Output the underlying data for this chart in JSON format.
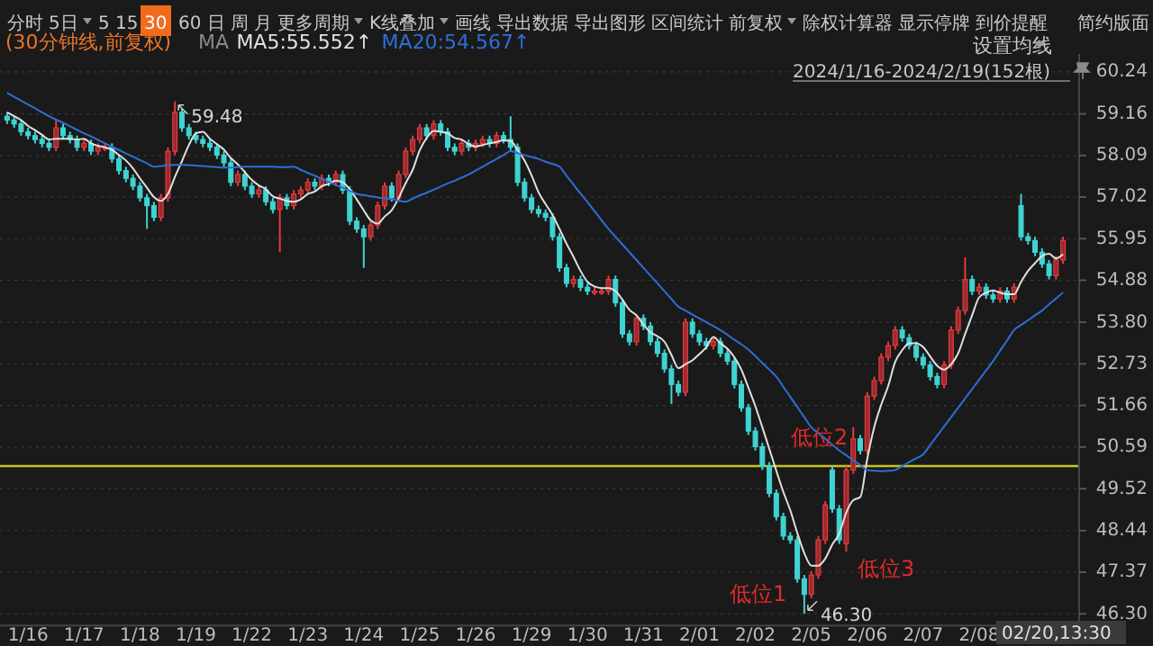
{
  "chart_data": {
    "type": "candlestick",
    "title": "(30分钟线,前复权)",
    "legend_title": "MA",
    "legend": "top left",
    "grid": "y",
    "categories": [
      null,
      null,
      null,
      "1/16",
      null,
      null,
      null,
      null,
      null,
      null,
      null,
      "1/17",
      null,
      null,
      null,
      null,
      null,
      null,
      null,
      "1/18",
      null,
      null,
      null,
      null,
      null,
      null,
      null,
      "1/19",
      null,
      null,
      null,
      null,
      null,
      null,
      null,
      "1/22",
      null,
      null,
      null,
      null,
      null,
      null,
      null,
      "1/23",
      null,
      null,
      null,
      null,
      null,
      null,
      null,
      "1/24",
      null,
      null,
      null,
      null,
      null,
      null,
      null,
      "1/25",
      null,
      null,
      null,
      null,
      null,
      null,
      null,
      "1/26",
      null,
      null,
      null,
      null,
      null,
      null,
      null,
      "1/29",
      null,
      null,
      null,
      null,
      null,
      null,
      null,
      "1/30",
      null,
      null,
      null,
      null,
      null,
      null,
      null,
      "1/31",
      null,
      null,
      null,
      null,
      null,
      null,
      null,
      "2/01",
      null,
      null,
      null,
      null,
      null,
      null,
      null,
      "2/02",
      null,
      null,
      null,
      null,
      null,
      null,
      null,
      "2/05",
      null,
      null,
      null,
      null,
      null,
      null,
      null,
      "2/06",
      null,
      null,
      null,
      null,
      null,
      null,
      null,
      "2/07",
      null,
      null,
      null,
      null,
      null,
      null,
      null,
      "2/08",
      null,
      null,
      null,
      null,
      null,
      null,
      null,
      null,
      null,
      null,
      null,
      null
    ],
    "ohlc": [
      [
        59.1,
        59.2,
        58.9,
        59.0
      ],
      [
        59.0,
        59.1,
        58.8,
        58.9
      ],
      [
        58.9,
        59.0,
        58.6,
        58.7
      ],
      [
        58.7,
        58.8,
        58.5,
        58.6
      ],
      [
        58.6,
        58.7,
        58.4,
        58.5
      ],
      [
        58.5,
        58.6,
        58.3,
        58.4
      ],
      [
        58.4,
        58.5,
        58.2,
        58.3
      ],
      [
        58.3,
        59.0,
        58.2,
        58.8
      ],
      [
        58.8,
        58.9,
        58.5,
        58.6
      ],
      [
        58.6,
        58.7,
        58.4,
        58.5
      ],
      [
        58.5,
        58.6,
        58.2,
        58.3
      ],
      [
        58.3,
        58.5,
        58.2,
        58.4
      ],
      [
        58.4,
        58.5,
        58.1,
        58.2
      ],
      [
        58.2,
        58.4,
        58.1,
        58.3
      ],
      [
        58.3,
        58.4,
        58.2,
        58.3
      ],
      [
        58.3,
        58.4,
        57.9,
        58.0
      ],
      [
        58.0,
        58.1,
        57.6,
        57.7
      ],
      [
        57.7,
        57.8,
        57.4,
        57.5
      ],
      [
        57.5,
        57.6,
        57.2,
        57.3
      ],
      [
        57.3,
        57.4,
        56.9,
        57.0
      ],
      [
        57.0,
        57.1,
        56.2,
        56.8
      ],
      [
        56.8,
        56.9,
        56.4,
        56.5
      ],
      [
        56.5,
        57.1,
        56.4,
        57.0
      ],
      [
        57.0,
        58.3,
        56.9,
        58.2
      ],
      [
        58.2,
        59.48,
        58.1,
        59.2
      ],
      [
        59.2,
        59.3,
        58.7,
        58.8
      ],
      [
        58.8,
        58.9,
        58.5,
        58.6
      ],
      [
        58.6,
        58.7,
        58.4,
        58.5
      ],
      [
        58.5,
        58.6,
        58.3,
        58.4
      ],
      [
        58.4,
        58.5,
        58.2,
        58.3
      ],
      [
        58.3,
        58.4,
        58.0,
        58.1
      ],
      [
        58.1,
        58.2,
        57.8,
        57.9
      ],
      [
        57.9,
        58.0,
        57.3,
        57.4
      ],
      [
        57.4,
        57.7,
        57.3,
        57.6
      ],
      [
        57.6,
        57.7,
        57.2,
        57.3
      ],
      [
        57.3,
        57.4,
        57.0,
        57.1
      ],
      [
        57.1,
        57.3,
        57.0,
        57.2
      ],
      [
        57.2,
        57.3,
        56.8,
        56.9
      ],
      [
        56.9,
        57.0,
        56.6,
        56.7
      ],
      [
        56.7,
        57.1,
        55.6,
        57.0
      ],
      [
        57.0,
        57.1,
        56.7,
        56.8
      ],
      [
        56.8,
        57.2,
        56.7,
        57.1
      ],
      [
        57.1,
        57.3,
        57.0,
        57.2
      ],
      [
        57.2,
        57.5,
        57.1,
        57.4
      ],
      [
        57.4,
        57.5,
        57.2,
        57.3
      ],
      [
        57.3,
        57.6,
        57.2,
        57.5
      ],
      [
        57.5,
        57.6,
        57.3,
        57.4
      ],
      [
        57.4,
        57.7,
        57.3,
        57.6
      ],
      [
        57.6,
        57.7,
        57.1,
        57.2
      ],
      [
        57.2,
        57.3,
        56.3,
        56.4
      ],
      [
        56.4,
        56.5,
        56.1,
        56.2
      ],
      [
        56.2,
        56.3,
        55.2,
        56.0
      ],
      [
        56.0,
        56.4,
        55.9,
        56.3
      ],
      [
        56.3,
        56.9,
        56.2,
        56.8
      ],
      [
        56.8,
        57.4,
        56.7,
        57.3
      ],
      [
        57.3,
        57.4,
        56.9,
        57.0
      ],
      [
        57.0,
        57.7,
        56.9,
        57.6
      ],
      [
        57.6,
        58.3,
        57.5,
        58.2
      ],
      [
        58.2,
        58.6,
        58.1,
        58.5
      ],
      [
        58.5,
        58.9,
        58.4,
        58.8
      ],
      [
        58.8,
        58.9,
        58.5,
        58.6
      ],
      [
        58.6,
        59.0,
        58.5,
        58.9
      ],
      [
        58.9,
        59.0,
        58.6,
        58.7
      ],
      [
        58.7,
        58.8,
        58.2,
        58.3
      ],
      [
        58.3,
        58.4,
        58.1,
        58.2
      ],
      [
        58.2,
        58.5,
        58.1,
        58.4
      ],
      [
        58.4,
        58.5,
        58.2,
        58.3
      ],
      [
        58.3,
        58.5,
        58.2,
        58.4
      ],
      [
        58.4,
        58.6,
        58.3,
        58.5
      ],
      [
        58.5,
        58.6,
        58.3,
        58.4
      ],
      [
        58.4,
        58.7,
        58.3,
        58.6
      ],
      [
        58.6,
        58.7,
        58.4,
        58.5
      ],
      [
        58.5,
        59.1,
        58.2,
        58.3
      ],
      [
        58.3,
        58.4,
        57.3,
        57.4
      ],
      [
        57.4,
        57.5,
        56.9,
        57.0
      ],
      [
        57.0,
        57.1,
        56.6,
        56.7
      ],
      [
        56.7,
        56.8,
        56.5,
        56.6
      ],
      [
        56.6,
        56.7,
        56.4,
        56.5
      ],
      [
        56.5,
        56.6,
        55.9,
        56.0
      ],
      [
        56.0,
        56.1,
        55.1,
        55.2
      ],
      [
        55.2,
        55.3,
        54.7,
        54.8
      ],
      [
        54.8,
        55.0,
        54.7,
        54.9
      ],
      [
        54.9,
        55.0,
        54.6,
        54.7
      ],
      [
        54.7,
        54.8,
        54.5,
        54.6
      ],
      [
        54.6,
        54.7,
        54.5,
        54.6
      ],
      [
        54.6,
        54.7,
        54.5,
        54.6
      ],
      [
        54.6,
        55.0,
        54.5,
        54.9
      ],
      [
        54.9,
        55.0,
        54.2,
        54.3
      ],
      [
        54.3,
        54.4,
        53.4,
        53.5
      ],
      [
        53.5,
        53.6,
        53.2,
        53.3
      ],
      [
        53.3,
        54.0,
        53.2,
        53.9
      ],
      [
        53.9,
        54.0,
        53.6,
        53.7
      ],
      [
        53.7,
        53.8,
        53.2,
        53.3
      ],
      [
        53.3,
        53.4,
        52.9,
        53.0
      ],
      [
        53.0,
        53.1,
        52.5,
        52.6
      ],
      [
        52.6,
        52.7,
        51.7,
        52.2
      ],
      [
        52.2,
        52.3,
        51.9,
        52.0
      ],
      [
        52.0,
        53.9,
        51.9,
        53.8
      ],
      [
        53.8,
        53.9,
        53.4,
        53.5
      ],
      [
        53.5,
        53.6,
        53.2,
        53.3
      ],
      [
        53.3,
        53.4,
        53.1,
        53.2
      ],
      [
        53.2,
        53.4,
        53.1,
        53.3
      ],
      [
        53.3,
        53.4,
        52.9,
        53.0
      ],
      [
        53.0,
        53.1,
        52.7,
        52.8
      ],
      [
        52.8,
        52.9,
        52.1,
        52.2
      ],
      [
        52.2,
        52.3,
        51.5,
        51.6
      ],
      [
        51.6,
        51.7,
        50.9,
        51.0
      ],
      [
        51.0,
        51.1,
        50.5,
        50.6
      ],
      [
        50.6,
        50.7,
        50.0,
        50.1
      ],
      [
        50.1,
        50.2,
        49.3,
        49.4
      ],
      [
        49.4,
        49.5,
        48.7,
        48.8
      ],
      [
        48.8,
        48.9,
        48.2,
        48.3
      ],
      [
        48.3,
        48.4,
        48.1,
        48.2
      ],
      [
        48.2,
        48.3,
        47.1,
        47.2
      ],
      [
        47.2,
        47.3,
        46.3,
        46.8
      ],
      [
        46.8,
        47.4,
        46.7,
        47.3
      ],
      [
        47.3,
        48.3,
        47.2,
        48.2
      ],
      [
        48.2,
        49.2,
        48.1,
        49.1
      ],
      [
        50.0,
        50.1,
        48.9,
        49.0
      ],
      [
        49.0,
        49.1,
        48.1,
        48.2
      ],
      [
        48.1,
        50.1,
        47.9,
        50.0
      ],
      [
        50.0,
        51.1,
        49.9,
        50.8
      ],
      [
        50.8,
        50.9,
        50.4,
        50.5
      ],
      [
        50.5,
        52.0,
        50.4,
        51.9
      ],
      [
        51.9,
        52.4,
        51.8,
        52.3
      ],
      [
        52.3,
        53.0,
        52.2,
        52.9
      ],
      [
        52.9,
        53.3,
        52.8,
        53.2
      ],
      [
        53.2,
        53.7,
        53.1,
        53.6
      ],
      [
        53.6,
        53.7,
        53.3,
        53.4
      ],
      [
        53.4,
        53.5,
        53.1,
        53.2
      ],
      [
        53.2,
        53.3,
        52.8,
        52.9
      ],
      [
        52.9,
        53.0,
        52.6,
        52.7
      ],
      [
        52.7,
        52.8,
        52.3,
        52.4
      ],
      [
        52.4,
        52.5,
        52.1,
        52.2
      ],
      [
        52.2,
        52.8,
        52.1,
        52.7
      ],
      [
        52.7,
        53.7,
        52.6,
        53.6
      ],
      [
        53.6,
        54.2,
        53.5,
        54.1
      ],
      [
        54.1,
        55.47,
        54.0,
        54.9
      ],
      [
        54.9,
        55.0,
        54.5,
        54.6
      ],
      [
        54.6,
        54.8,
        54.5,
        54.7
      ],
      [
        54.7,
        54.8,
        54.4,
        54.5
      ],
      [
        54.5,
        54.6,
        54.3,
        54.4
      ],
      [
        54.4,
        54.7,
        54.3,
        54.6
      ],
      [
        54.6,
        54.7,
        54.3,
        54.4
      ],
      [
        54.4,
        54.8,
        54.3,
        54.7
      ],
      [
        56.8,
        57.1,
        55.9,
        56.0
      ],
      [
        56.0,
        56.1,
        55.8,
        55.9
      ],
      [
        55.9,
        56.0,
        55.5,
        55.6
      ],
      [
        55.6,
        55.7,
        55.2,
        55.3
      ],
      [
        55.3,
        55.4,
        54.9,
        55.0
      ],
      [
        55.0,
        55.5,
        54.9,
        55.4
      ],
      [
        55.4,
        56.0,
        55.3,
        55.9
      ]
    ],
    "series": [
      {
        "name": "MA5:55.552↑",
        "type": "line",
        "color": "#e0e0e0",
        "values": [
          59.2,
          59.1,
          59.0,
          58.85,
          58.74,
          58.62,
          58.5,
          58.52,
          58.52,
          58.52,
          58.5,
          58.52,
          58.4,
          58.34,
          58.3,
          58.24,
          58.1,
          57.96,
          57.76,
          57.5,
          57.26,
          57.02,
          56.92,
          57.1,
          57.54,
          57.94,
          58.36,
          58.66,
          58.7,
          58.52,
          58.38,
          58.24,
          58.02,
          57.86,
          57.66,
          57.46,
          57.32,
          57.22,
          57.04,
          56.98,
          56.92,
          56.9,
          56.96,
          57.1,
          57.16,
          57.3,
          57.36,
          57.44,
          57.4,
          57.22,
          56.96,
          56.68,
          56.42,
          56.34,
          56.52,
          56.68,
          57.0,
          57.38,
          57.72,
          58.22,
          58.54,
          58.72,
          58.7,
          58.66,
          58.54,
          58.5,
          58.38,
          58.32,
          58.36,
          58.4,
          58.44,
          58.48,
          58.46,
          58.24,
          57.96,
          57.58,
          57.14,
          56.84,
          56.56,
          56.2,
          55.82,
          55.48,
          55.12,
          54.84,
          54.72,
          54.68,
          54.68,
          54.6,
          54.38,
          54.12,
          53.98,
          53.74,
          53.54,
          53.44,
          53.3,
          52.96,
          52.62,
          52.72,
          52.82,
          52.98,
          53.16,
          53.42,
          53.26,
          53.12,
          52.9,
          52.58,
          52.12,
          51.64,
          51.1,
          50.54,
          49.98,
          49.44,
          48.96,
          48.38,
          47.86,
          47.54,
          47.54,
          47.72,
          48.08,
          48.36,
          48.9,
          49.22,
          49.3,
          50.28,
          51.1,
          51.68,
          52.16,
          52.78,
          53.08,
          53.26,
          53.26,
          53.16,
          52.92,
          52.68,
          52.58,
          52.72,
          53.0,
          53.5,
          53.98,
          54.44,
          54.56,
          54.62,
          54.56,
          54.52,
          54.52,
          54.84,
          55.12,
          55.32,
          55.5,
          55.56,
          55.44,
          55.55
        ]
      },
      {
        "name": "MA20:54.567↑",
        "type": "line",
        "color": "#2d6fd6",
        "values": [
          59.7,
          59.6,
          59.5,
          59.4,
          59.3,
          59.2,
          59.1,
          59.01,
          58.93,
          58.84,
          58.75,
          58.66,
          58.58,
          58.49,
          58.4,
          58.31,
          58.23,
          58.14,
          58.06,
          57.97,
          57.89,
          57.8,
          57.82,
          57.84,
          57.85,
          57.85,
          57.84,
          57.83,
          57.82,
          57.8,
          57.79,
          57.78,
          57.78,
          57.79,
          57.8,
          57.8,
          57.8,
          57.8,
          57.8,
          57.79,
          57.79,
          57.8,
          57.72,
          57.64,
          57.57,
          57.49,
          57.41,
          57.33,
          57.26,
          57.18,
          57.1,
          57.07,
          57.04,
          57.01,
          56.99,
          56.96,
          56.93,
          56.9,
          56.98,
          57.06,
          57.13,
          57.21,
          57.29,
          57.37,
          57.44,
          57.52,
          57.6,
          57.7,
          57.8,
          57.9,
          58.0,
          58.1,
          58.2,
          58.15,
          58.1,
          58.05,
          58.0,
          57.93,
          57.87,
          57.8,
          57.57,
          57.34,
          57.11,
          56.89,
          56.66,
          56.43,
          56.2,
          56.0,
          55.8,
          55.6,
          55.4,
          55.2,
          55.0,
          54.8,
          54.6,
          54.4,
          54.2,
          54.1,
          54.0,
          53.9,
          53.8,
          53.7,
          53.6,
          53.48,
          53.35,
          53.23,
          53.1,
          52.93,
          52.75,
          52.58,
          52.4,
          52.14,
          51.88,
          51.62,
          51.36,
          51.1,
          50.95,
          50.8,
          50.65,
          50.5,
          50.38,
          50.25,
          50.13,
          50.0,
          49.98,
          49.97,
          49.98,
          50.0,
          50.1,
          50.2,
          50.3,
          50.4,
          50.64,
          50.88,
          51.12,
          51.36,
          51.6,
          51.84,
          52.08,
          52.32,
          52.56,
          52.8,
          53.07,
          53.33,
          53.6,
          53.73,
          53.85,
          53.98,
          54.1,
          54.26,
          54.41,
          54.57
        ]
      }
    ],
    "ylim": [
      46.0,
      60.7
    ],
    "yticks": [
      {
        "value": 46.3,
        "label": "46.30"
      },
      47.37,
      48.44,
      49.52,
      50.59,
      51.66,
      52.73,
      {
        "value": 53.8,
        "label": "53.80"
      },
      54.88,
      55.95,
      57.02,
      58.09,
      59.16,
      60.24
    ],
    "ref_lines": [
      {
        "axis": "y",
        "value": 50.1,
        "color": "#c8c31e"
      }
    ],
    "annotations": [
      "分时",
      "5日",
      "5",
      "15",
      "30",
      "60",
      "日",
      "周",
      "月",
      "更多周期",
      "K线叠加",
      "画线",
      "导出数据",
      "导出图形",
      "区间统计",
      "前复权",
      "除权计算器",
      "显示停牌",
      "到价提醒",
      "简约版面",
      "设置均线",
      "2024/1/16-2024/2/19(152根)",
      "低位1",
      "低位2",
      "低位3",
      "02/20,13:30",
      "59.48",
      "46.30"
    ]
  }
}
